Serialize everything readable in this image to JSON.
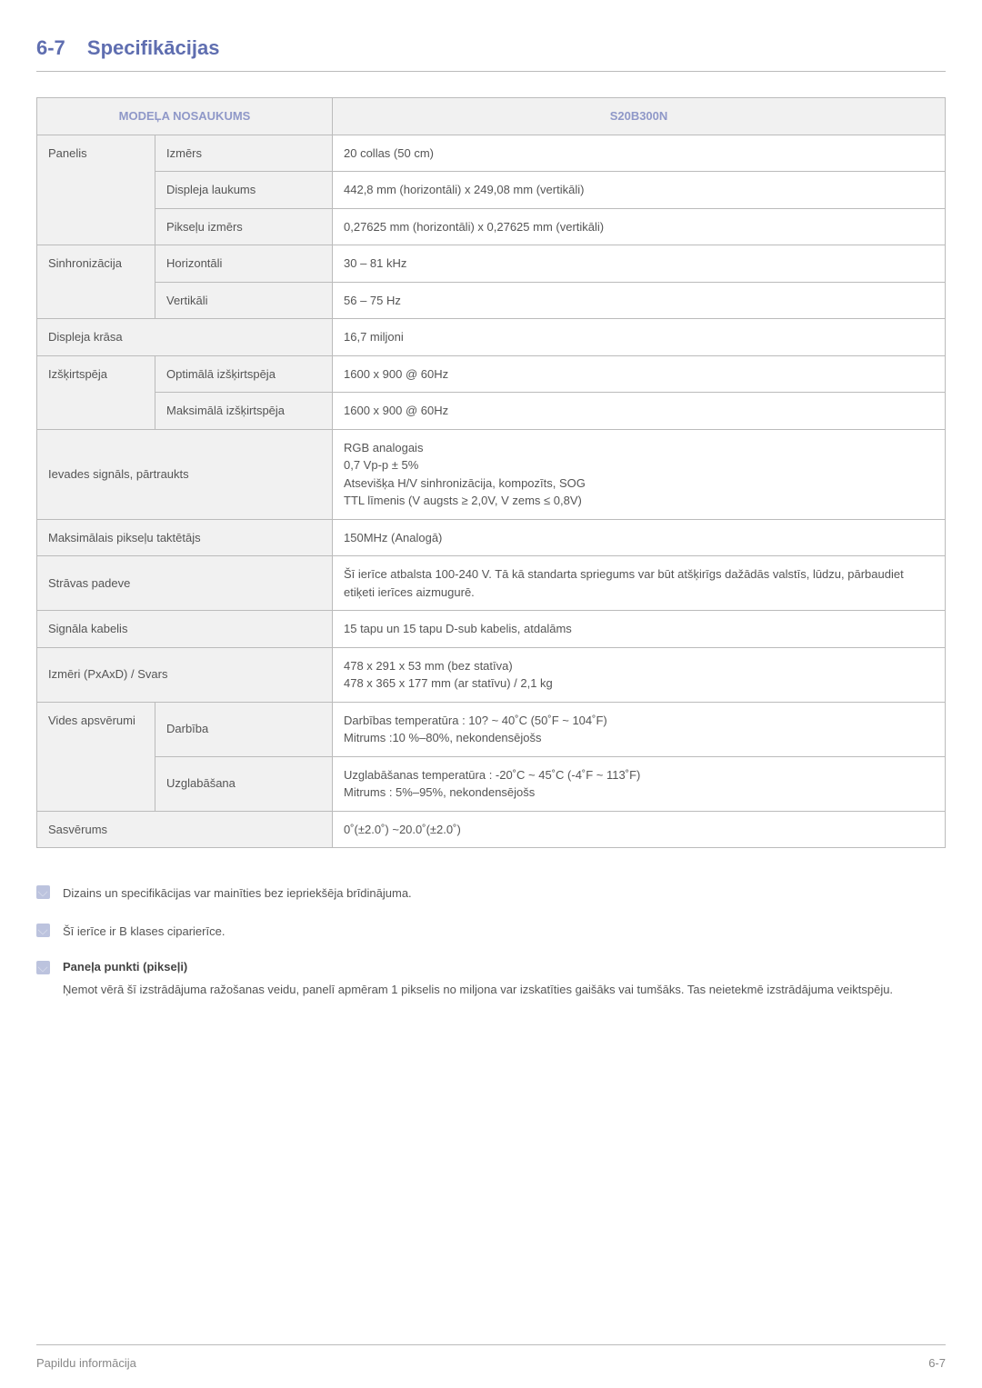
{
  "colors": {
    "heading": "#5f6eb0",
    "header_text": "#8f98c8",
    "header_bg": "#f1f1f1",
    "border": "#bbbbbb",
    "body_text": "#555555",
    "note_icon_bg": "#bcc3de",
    "footer_text": "#888888"
  },
  "heading": {
    "number": "6-7",
    "title": "Specifikācijas"
  },
  "table": {
    "header": {
      "left": "MODEĻA NOSAUKUMS",
      "right": "S20B300N"
    },
    "rows": [
      {
        "c1": "Panelis",
        "c1_rowspan": 3,
        "c2": "Izmērs",
        "v": "20 collas (50 cm)"
      },
      {
        "c2": "Displeja laukums",
        "v": "442,8 mm (horizontāli) x 249,08 mm (vertikāli)"
      },
      {
        "c2": "Pikseļu izmērs",
        "v": "0,27625 mm (horizontāli) x 0,27625 mm (vertikāli)"
      },
      {
        "c1": "Sinhronizācija",
        "c1_rowspan": 2,
        "c2": "Horizontāli",
        "v": "30 – 81 kHz"
      },
      {
        "c2": "Vertikāli",
        "v": "56 – 75 Hz"
      },
      {
        "c12": "Displeja krāsa",
        "v": "16,7 miljoni"
      },
      {
        "c1": "Izšķirtspēja",
        "c1_rowspan": 2,
        "c2": "Optimālā izšķirtspēja",
        "v": "1600 x 900 @ 60Hz"
      },
      {
        "c2": "Maksimālā izšķirtspēja",
        "v": "1600 x 900 @ 60Hz"
      },
      {
        "c12": "Ievades signāls, pārtraukts",
        "v": "RGB analogais\n0,7 Vp-p ± 5%\nAtsevišķa H/V sinhronizācija, kompozīts, SOG\nTTL līmenis (V augsts ≥ 2,0V, V zems ≤ 0,8V)"
      },
      {
        "c12": "Maksimālais pikseļu taktētājs",
        "v": "150MHz (Analogā)"
      },
      {
        "c12": "Strāvas padeve",
        "v": "Šī ierīce atbalsta 100-240 V. Tā kā standarta spriegums var būt atšķirīgs dažādās valstīs, lūdzu, pārbaudiet etiķeti ierīces aizmugurē."
      },
      {
        "c12": "Signāla kabelis",
        "v": "15 tapu un 15 tapu D-sub kabelis, atdalāms"
      },
      {
        "c12": "Izmēri (PxAxD) / Svars",
        "v": "478 x 291 x 53 mm (bez statīva)\n478 x 365 x 177 mm (ar statīvu) / 2,1 kg"
      },
      {
        "c1": "Vides apsvērumi",
        "c1_rowspan": 2,
        "c2": "Darbība",
        "v": "Darbības temperatūra : 10? ~ 40˚C (50˚F ~ 104˚F)\nMitrums :10 %–80%, nekondensējošs"
      },
      {
        "c2": "Uzglabāšana",
        "v": "Uzglabāšanas temperatūra : -20˚C ~ 45˚C (-4˚F ~ 113˚F)\nMitrums : 5%–95%, nekondensējošs"
      },
      {
        "c12": "Sasvērums",
        "v": "0˚(±2.0˚) ~20.0˚(±2.0˚)"
      }
    ]
  },
  "notes": [
    {
      "title": "",
      "text": "Dizains un specifikācijas var mainīties bez iepriekšēja brīdinājuma."
    },
    {
      "title": "",
      "text": "Šī ierīce ir B klases ciparierīce."
    },
    {
      "title": "Paneļa punkti (pikseļi)",
      "text": "Ņemot vērā šī izstrādājuma ražošanas veidu, panelī apmēram 1 pikselis no miljona var izskatīties gaišāks vai tumšāks. Tas neietekmē izstrādājuma veiktspēju."
    }
  ],
  "footer": {
    "left": "Papildu informācija",
    "right": "6-7"
  }
}
